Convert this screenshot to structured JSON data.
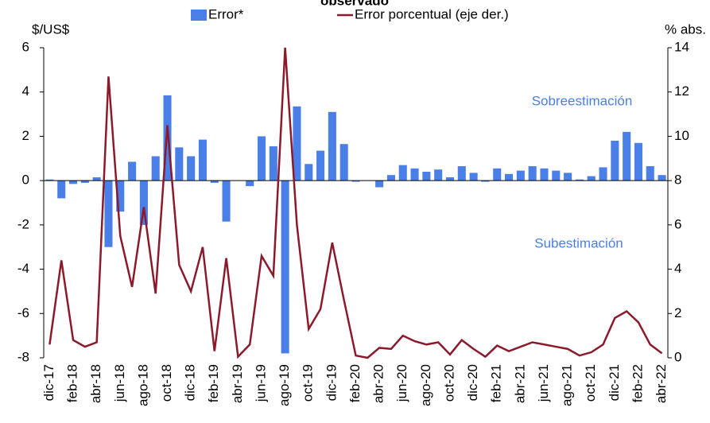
{
  "chart_data": {
    "type": "bar-line",
    "title": "observado",
    "y_label": "$/US$",
    "y2_label": "% abs.",
    "annotations": [
      "Sobreestimación",
      "Subestimación"
    ],
    "categories": [
      "dic-17",
      null,
      "feb-18",
      null,
      "abr-18",
      null,
      "jun-18",
      null,
      "ago-18",
      null,
      "oct-18",
      null,
      "dic-18",
      null,
      "feb-19",
      null,
      "abr-19",
      null,
      "jun-19",
      null,
      "ago-19",
      null,
      "oct-19",
      null,
      "dic-19",
      null,
      "feb-20",
      null,
      "abr-20",
      null,
      "jun-20",
      null,
      "ago-20",
      null,
      "oct-20",
      null,
      "dic-20",
      null,
      "feb-21",
      null,
      "abr-21",
      null,
      "jun-21",
      null,
      "ago-21",
      null,
      "oct-21",
      null,
      "dic-21",
      null,
      "feb-22",
      null,
      "abr-22"
    ],
    "series": [
      {
        "name": "Error*",
        "type": "bar",
        "color": "#4a7fe8",
        "values": [
          0.05,
          -0.8,
          -0.15,
          -0.1,
          0.15,
          -3.0,
          -1.4,
          0.85,
          -2.0,
          1.1,
          3.85,
          1.5,
          1.1,
          1.85,
          -0.1,
          -1.85,
          0.0,
          -0.25,
          2.0,
          1.55,
          -7.8,
          3.35,
          0.75,
          1.35,
          3.1,
          1.65,
          -0.05,
          0.0,
          -0.3,
          0.25,
          0.7,
          0.55,
          0.4,
          0.5,
          0.15,
          0.65,
          0.35,
          -0.05,
          0.55,
          0.3,
          0.45,
          0.65,
          0.55,
          0.45,
          0.35,
          0.05,
          0.2,
          0.6,
          1.8,
          2.2,
          1.7,
          0.65,
          0.25
        ]
      },
      {
        "name": "Error porcentual (eje der.)",
        "type": "line",
        "axis": "y2",
        "color": "#8b1a2b",
        "values": [
          0.6,
          4.4,
          0.8,
          0.5,
          0.7,
          12.7,
          5.5,
          3.2,
          6.8,
          2.9,
          10.5,
          4.2,
          3.0,
          5.0,
          0.3,
          4.5,
          0.05,
          0.6,
          4.6,
          3.7,
          14.0,
          6.0,
          1.3,
          2.2,
          5.2,
          2.6,
          0.1,
          0.0,
          0.45,
          0.4,
          1.0,
          0.75,
          0.6,
          0.7,
          0.15,
          0.8,
          0.4,
          0.05,
          0.55,
          0.3,
          0.5,
          0.7,
          0.6,
          0.5,
          0.4,
          0.1,
          0.25,
          0.6,
          1.8,
          2.1,
          1.6,
          0.6,
          0.2
        ]
      }
    ],
    "ylim": [
      -8,
      6
    ],
    "yticks": [
      -8,
      -6,
      -4,
      -2,
      0,
      2,
      4,
      6
    ],
    "y2lim": [
      0,
      14
    ],
    "y2ticks": [
      0,
      2,
      4,
      6,
      8,
      10,
      12,
      14
    ],
    "grid": false
  }
}
